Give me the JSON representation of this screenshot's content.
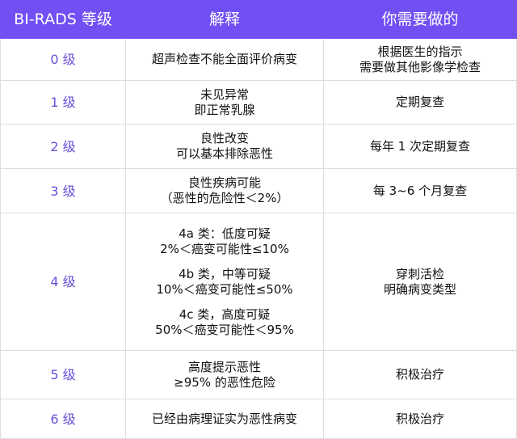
{
  "colors": {
    "header_bg": "#714ff2",
    "level_text": "#6a4fd8"
  },
  "headers": [
    "BI-RADS 等级",
    "解释",
    "你需要做的"
  ],
  "rows": [
    {
      "level": "0 级",
      "explain": [
        "超声检查不能全面评价病变"
      ],
      "action": [
        "根据医生的指示",
        "需要做其他影像学检查"
      ]
    },
    {
      "level": "1 级",
      "explain": [
        "未见异常",
        "即正常乳腺"
      ],
      "action": [
        "定期复查"
      ]
    },
    {
      "level": "2 级",
      "explain": [
        "良性改变",
        "可以基本排除恶性"
      ],
      "action": [
        "每年 1 次定期复查"
      ]
    },
    {
      "level": "3 级",
      "explain": [
        "良性疾病可能",
        "（恶性的危险性＜2%）"
      ],
      "action": [
        "每 3~6 个月复查"
      ]
    },
    {
      "level": "4 级",
      "explain": [
        "4a 类：低度可疑",
        "2%＜癌变可能性≤10%",
        "",
        "4b 类，中等可疑",
        "10%＜癌变可能性≤50%",
        "",
        "4c 类，高度可疑",
        "50%＜癌变可能性＜95%"
      ],
      "action": [
        "穿刺活检",
        "明确病变类型"
      ]
    },
    {
      "level": "5 级",
      "explain": [
        "高度提示恶性",
        "≥95% 的恶性危险"
      ],
      "action": [
        "积极治疗"
      ]
    },
    {
      "level": "6 级",
      "explain": [
        "已经由病理证实为恶性病变"
      ],
      "action": [
        "积极治疗"
      ]
    }
  ]
}
